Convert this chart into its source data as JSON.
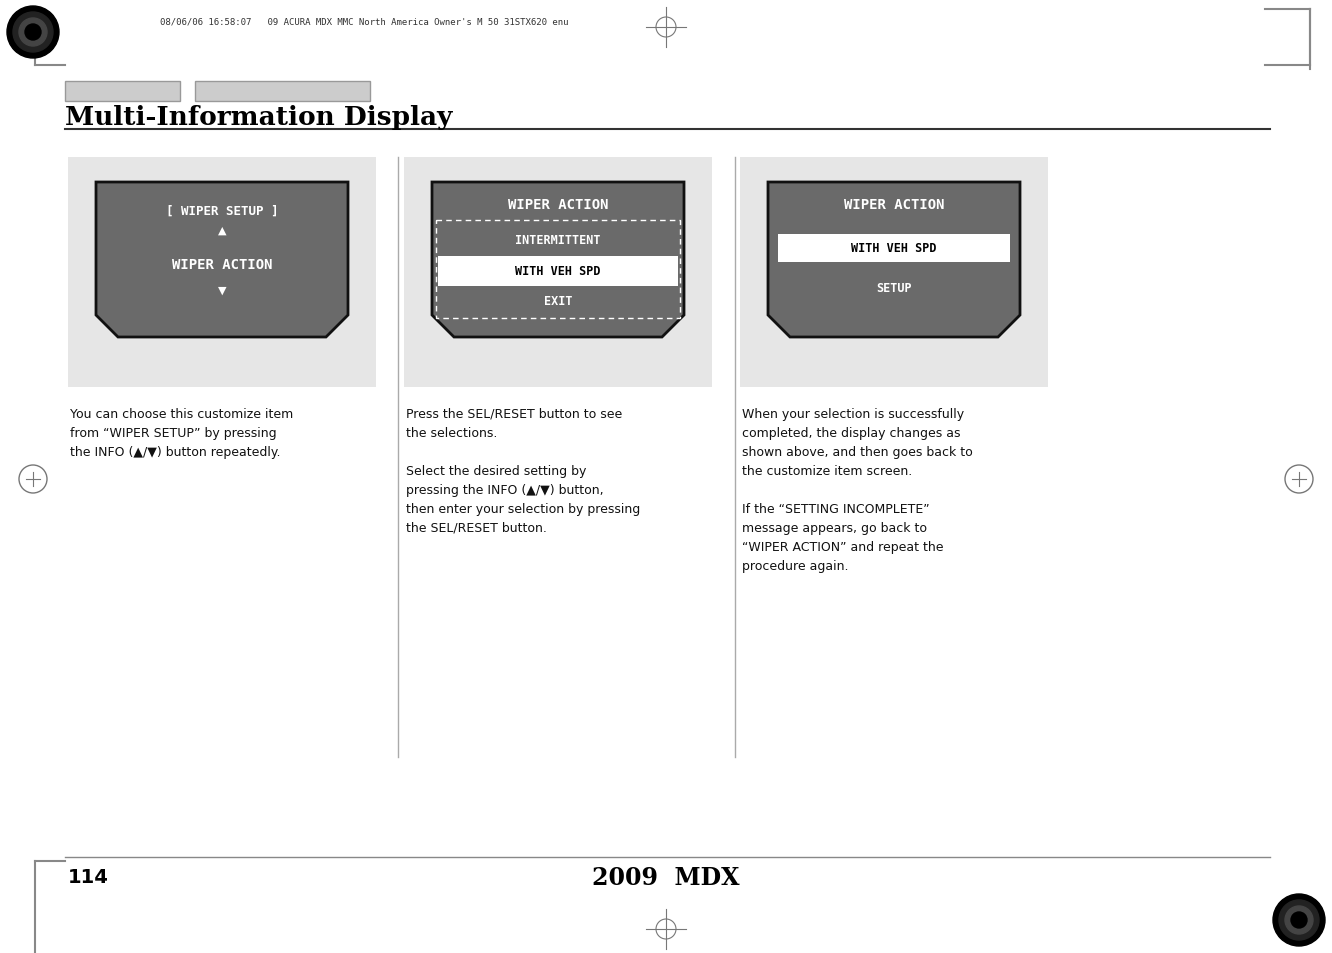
{
  "page_bg": "#ffffff",
  "title": "Multi-Information Display",
  "header_text": "08/06/06 16:58:07   09 ACURA MDX MMC North America Owner's M 50 31STX620 enu",
  "footer_page": "114",
  "footer_center": "2009  MDX",
  "display_bg": "#e6e6e6",
  "screen_bg": "#6a6a6a",
  "screen_border": "#111111",
  "panel1": {
    "title_text": "[ WIPER SETUP ]",
    "items": [
      "WIPER ACTION"
    ],
    "caption": "You can choose this customize item\nfrom “WIPER SETUP” by pressing\nthe INFO (▲/▼) button repeatedly."
  },
  "panel2": {
    "title_text": "WIPER ACTION",
    "items": [
      "INTERMITTENT",
      "WITH VEH SPD",
      "EXIT"
    ],
    "selected": "WITH VEH SPD",
    "caption": "Press the SEL/RESET button to see\nthe selections.\n\nSelect the desired setting by\npressing the INFO (▲/▼) button,\nthen enter your selection by pressing\nthe SEL/RESET button."
  },
  "panel3": {
    "title_text": "WIPER ACTION",
    "items": [
      "WITH VEH SPD",
      "SETUP"
    ],
    "selected": "WITH VEH SPD",
    "caption": "When your selection is successfully\ncompleted, the display changes as\nshown above, and then goes back to\nthe customize item screen.\n\nIf the “SETTING INCOMPLETE”\nmessage appears, go back to\n“WIPER ACTION” and repeat the\nprocedure again."
  }
}
